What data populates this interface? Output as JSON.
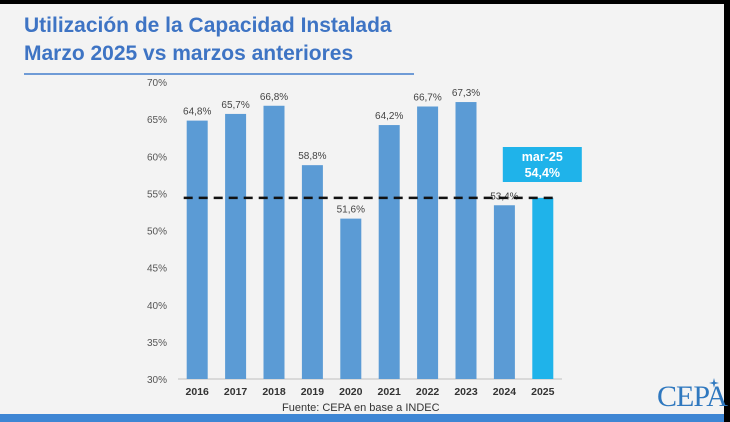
{
  "title_line1": "Utilización de la Capacidad Instalada",
  "title_line2": "Marzo 2025 vs marzos anteriores",
  "source": "Fuente: CEPA en base a INDEC",
  "logo_text": "CEPA",
  "colors": {
    "bar": "#5b9bd5",
    "highlight_bar": "#1fb3ea",
    "title": "#3e74c4",
    "reference_line": "#111111",
    "callout_bg": "#1fb3ea",
    "callout_text": "#ffffff"
  },
  "chart_data": {
    "type": "bar",
    "categories": [
      "2016",
      "2017",
      "2018",
      "2019",
      "2020",
      "2021",
      "2022",
      "2023",
      "2024",
      "2025"
    ],
    "values": [
      64.8,
      65.7,
      66.8,
      58.8,
      51.6,
      64.2,
      66.7,
      67.3,
      53.4,
      54.4
    ],
    "data_labels": [
      "64,8%",
      "65,7%",
      "66,8%",
      "58,8%",
      "51,6%",
      "64,2%",
      "66,7%",
      "67,3%",
      "53,4%",
      ""
    ],
    "highlight_index": 9,
    "ylim": [
      30,
      70
    ],
    "yticks": [
      30,
      35,
      40,
      45,
      50,
      55,
      60,
      65,
      70
    ],
    "ytick_labels": [
      "30%",
      "35%",
      "40%",
      "45%",
      "50%",
      "55%",
      "60%",
      "65%",
      "70%"
    ],
    "reference_line": {
      "value": 54.4,
      "style": "dashed"
    },
    "callout": {
      "line1": "mar-25",
      "line2": "54,4%"
    },
    "grid": false,
    "legend": "none"
  }
}
